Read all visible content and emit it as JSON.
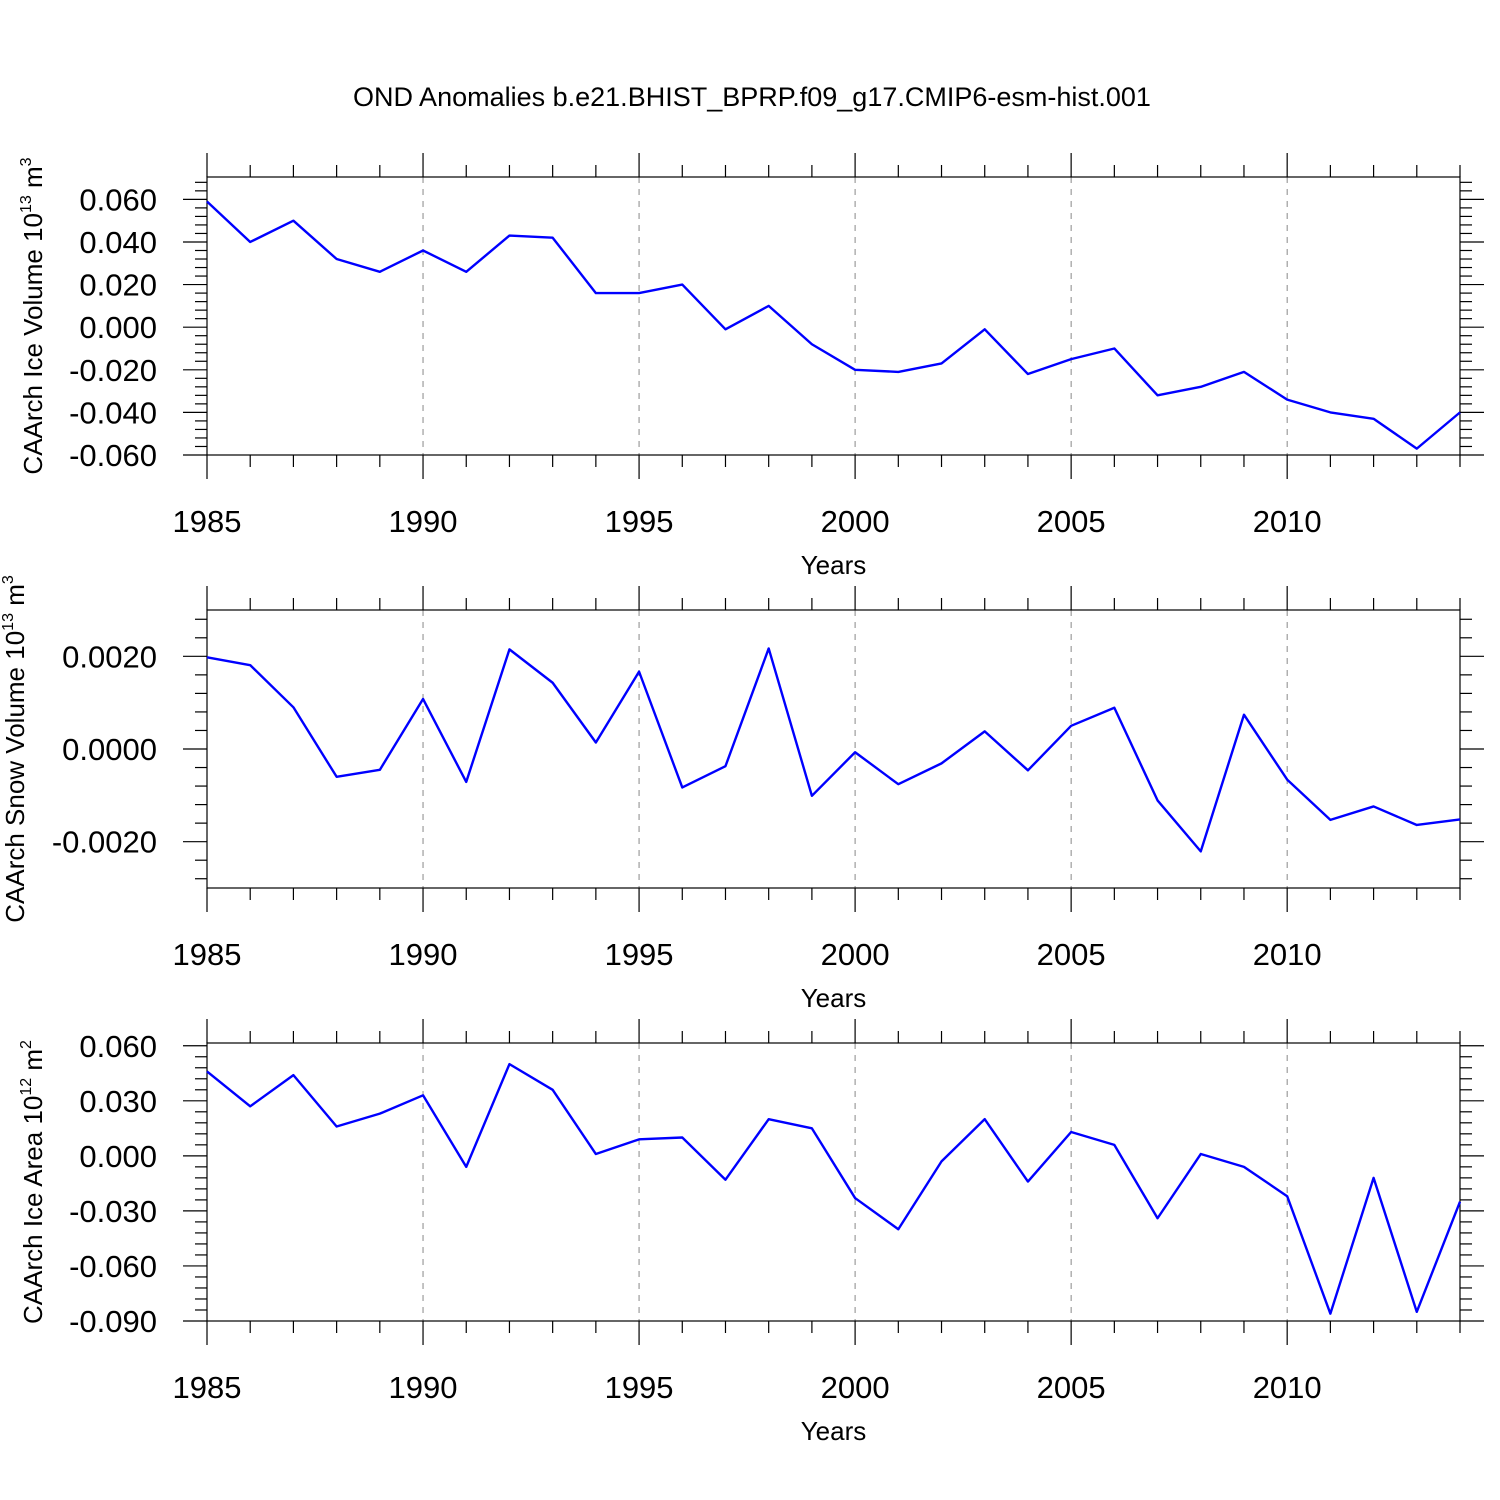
{
  "title": "OND Anomalies b.e21.BHIST_BPRP.f09_g17.CMIP6-esm-hist.001",
  "colors": {
    "line": "#0000ff"
  },
  "chart_data": [
    {
      "type": "line",
      "ylabel": "CAArch Ice Volume 10",
      "ylabel_exp": "13",
      "ylabel_unit": " m",
      "ylabel_unit_exp": "3",
      "xlabel": "Years",
      "ylim": [
        -0.06,
        0.0705
      ],
      "yticks": [
        -0.06,
        -0.04,
        -0.02,
        0.0,
        0.02,
        0.04,
        0.06
      ],
      "ytick_labels": [
        "-0.060",
        "-0.040",
        "-0.020",
        "0.000",
        "0.020",
        "0.040",
        "0.060"
      ],
      "ytick_step": 0.02,
      "yminor": 4,
      "xlim": [
        1985,
        2014
      ],
      "xticks": [
        1985,
        1990,
        1995,
        2000,
        2005,
        2010
      ],
      "xtick_labels": [
        "1985",
        "1990",
        "1995",
        "2000",
        "2005",
        "2010"
      ],
      "x": [
        1985,
        1986,
        1987,
        1988,
        1989,
        1990,
        1991,
        1992,
        1993,
        1994,
        1995,
        1996,
        1997,
        1998,
        1999,
        2000,
        2001,
        2002,
        2003,
        2004,
        2005,
        2006,
        2007,
        2008,
        2009,
        2010,
        2011,
        2012,
        2013,
        2014
      ],
      "values": [
        0.059,
        0.04,
        0.05,
        0.032,
        0.026,
        0.036,
        0.026,
        0.043,
        0.042,
        0.016,
        0.016,
        0.02,
        -0.001,
        0.01,
        -0.008,
        -0.02,
        -0.021,
        -0.017,
        -0.001,
        -0.022,
        -0.015,
        -0.01,
        -0.032,
        -0.028,
        -0.021,
        -0.034,
        -0.04,
        -0.043,
        -0.057,
        -0.04
      ]
    },
    {
      "type": "line",
      "ylabel": "CAArch Snow Volume 10",
      "ylabel_exp": "13",
      "ylabel_unit": " m",
      "ylabel_unit_exp": "3",
      "xlabel": "Years",
      "ylim": [
        -0.003,
        0.003
      ],
      "yticks": [
        -0.002,
        0.0,
        0.002
      ],
      "ytick_labels": [
        "-0.0020",
        "0.0000",
        "0.0020"
      ],
      "ytick_step": 0.002,
      "yminor": 4,
      "xlim": [
        1985,
        2014
      ],
      "xticks": [
        1985,
        1990,
        1995,
        2000,
        2005,
        2010
      ],
      "xtick_labels": [
        "1985",
        "1990",
        "1995",
        "2000",
        "2005",
        "2010"
      ],
      "x": [
        1985,
        1986,
        1987,
        1988,
        1989,
        1990,
        1991,
        1992,
        1993,
        1994,
        1995,
        1996,
        1997,
        1998,
        1999,
        2000,
        2001,
        2002,
        2003,
        2004,
        2005,
        2006,
        2007,
        2008,
        2009,
        2010,
        2011,
        2012,
        2013,
        2014
      ],
      "values": [
        0.00198,
        0.00181,
        0.0009,
        -0.0006,
        -0.00045,
        0.00108,
        -0.00071,
        0.00215,
        0.00143,
        0.00014,
        0.00167,
        -0.00083,
        -0.00037,
        0.00217,
        -0.00101,
        -7e-05,
        -0.00076,
        -0.00031,
        0.00038,
        -0.00046,
        0.0005,
        0.00089,
        -0.00111,
        -0.00221,
        0.00074,
        -0.00066,
        -0.00153,
        -0.00124,
        -0.00164,
        -0.00152
      ]
    },
    {
      "type": "line",
      "ylabel": "CAArch Ice Area 10",
      "ylabel_exp": "12",
      "ylabel_unit": " m",
      "ylabel_unit_exp": "2",
      "xlabel": "Years",
      "ylim": [
        -0.09,
        0.0615
      ],
      "yticks": [
        -0.09,
        -0.06,
        -0.03,
        0.0,
        0.03,
        0.06
      ],
      "ytick_labels": [
        "-0.090",
        "-0.060",
        "-0.030",
        "0.000",
        "0.030",
        "0.060"
      ],
      "ytick_step": 0.03,
      "yminor": 4,
      "xlim": [
        1985,
        2014
      ],
      "xticks": [
        1985,
        1990,
        1995,
        2000,
        2005,
        2010
      ],
      "xtick_labels": [
        "1985",
        "1990",
        "1995",
        "2000",
        "2005",
        "2010"
      ],
      "x": [
        1985,
        1986,
        1987,
        1988,
        1989,
        1990,
        1991,
        1992,
        1993,
        1994,
        1995,
        1996,
        1997,
        1998,
        1999,
        2000,
        2001,
        2002,
        2003,
        2004,
        2005,
        2006,
        2007,
        2008,
        2009,
        2010,
        2011,
        2012,
        2013,
        2014
      ],
      "values": [
        0.046,
        0.027,
        0.044,
        0.016,
        0.023,
        0.033,
        -0.006,
        0.05,
        0.036,
        0.001,
        0.009,
        0.01,
        -0.013,
        0.02,
        0.015,
        -0.023,
        -0.04,
        -0.003,
        0.02,
        -0.014,
        0.013,
        0.006,
        -0.034,
        0.001,
        -0.006,
        -0.022,
        -0.086,
        -0.012,
        -0.085,
        -0.025
      ]
    }
  ]
}
